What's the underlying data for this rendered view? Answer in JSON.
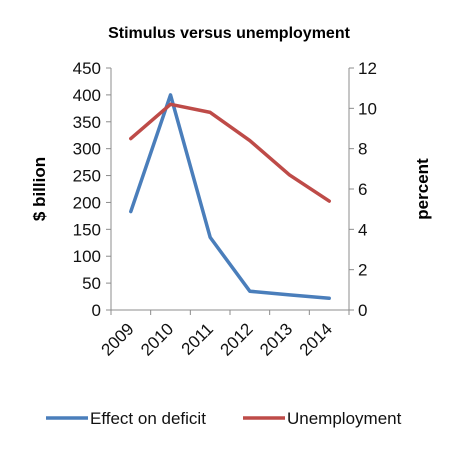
{
  "chart_data": {
    "type": "line",
    "title": "Stimulus versus unemployment",
    "categories": [
      "2009",
      "2010",
      "2011",
      "2012",
      "2013",
      "2014"
    ],
    "y_left": {
      "label": "$ billion",
      "range": [
        0,
        450
      ],
      "ticks": [
        "0",
        "50",
        "100",
        "150",
        "200",
        "250",
        "300",
        "350",
        "400",
        "450"
      ]
    },
    "y_right": {
      "label": "percent",
      "range": [
        0,
        12
      ],
      "ticks": [
        "0",
        "2",
        "4",
        "6",
        "8",
        "10",
        "12"
      ]
    },
    "grid": false,
    "legend_position": "bottom",
    "series": [
      {
        "name": "Effect on deficit",
        "axis": "left",
        "color": "#4a7ebb",
        "values": [
          183,
          400,
          135,
          35,
          28,
          22
        ]
      },
      {
        "name": "Unemployment",
        "axis": "right",
        "color": "#be4b48",
        "values": [
          8.5,
          10.2,
          9.8,
          8.4,
          6.7,
          5.4
        ]
      }
    ]
  }
}
